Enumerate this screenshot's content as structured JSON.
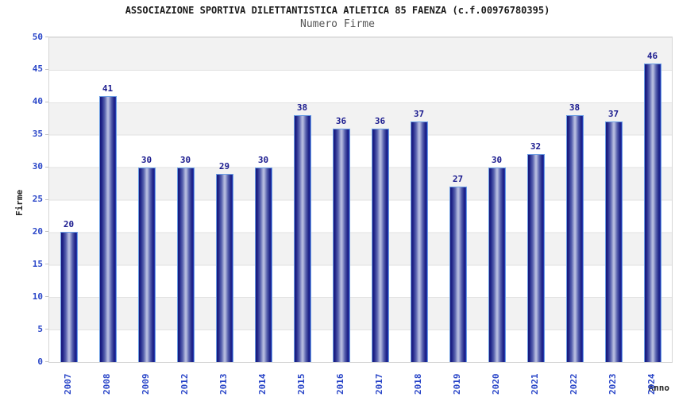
{
  "chart_data": {
    "type": "bar",
    "title": "ASSOCIAZIONE SPORTIVA DILETTANTISTICA ATLETICA 85 FAENZA (c.f.00976780395)",
    "subtitle": "Numero Firme",
    "xlabel": "Anno",
    "ylabel": "Firme",
    "categories": [
      "2007",
      "2008",
      "2009",
      "2012",
      "2013",
      "2014",
      "2015",
      "2016",
      "2017",
      "2018",
      "2019",
      "2020",
      "2021",
      "2022",
      "2023",
      "2024"
    ],
    "values": [
      20,
      41,
      30,
      30,
      29,
      30,
      38,
      36,
      36,
      37,
      27,
      30,
      32,
      38,
      37,
      46
    ],
    "ylim": [
      0,
      50
    ],
    "yticks": [
      0,
      5,
      10,
      15,
      20,
      25,
      30,
      35,
      40,
      45,
      50
    ],
    "grid": "horizontal-bands",
    "legend_position": "none",
    "colors": {
      "axis_label": "#2a46c8",
      "value_label": "#1a1a8e",
      "bar_dark": "#16167a",
      "bar_light": "#b4bade",
      "bar_outline": "#6d9fe4",
      "band_gray": "#f2f2f2",
      "plot_border": "#d6d6d6",
      "title_text": "#1a1a1a",
      "subtitle_text": "#555555"
    }
  }
}
